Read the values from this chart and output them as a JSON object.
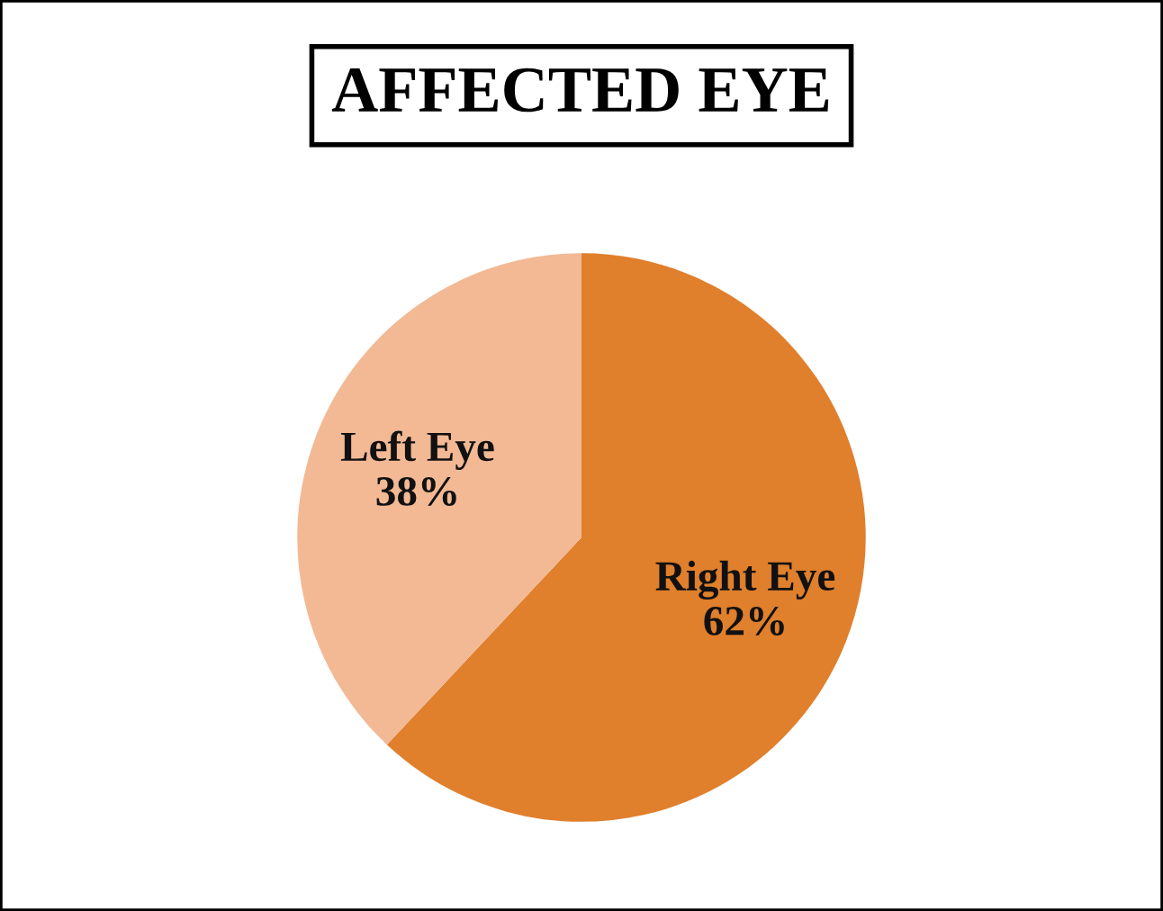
{
  "chart_data": {
    "type": "pie",
    "title": "AFFECTED EYE",
    "categories": [
      "Right Eye",
      "Left Eye"
    ],
    "values": [
      62,
      38
    ],
    "value_labels": [
      "62%",
      "38%"
    ],
    "colors": [
      "#e07f2c",
      "#f2b994"
    ]
  }
}
